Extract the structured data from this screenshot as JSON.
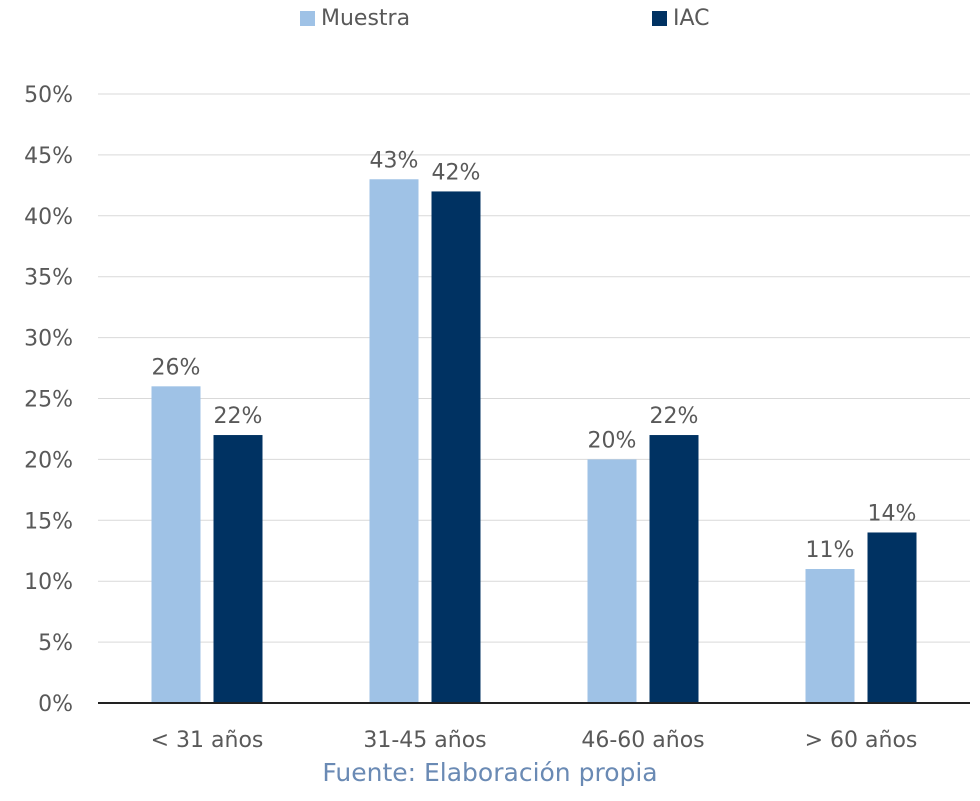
{
  "colors": {
    "muestra": "#9fc2e6",
    "iac": "#003262",
    "grid": "#d9d9d9",
    "axis": "#222222",
    "text": "#595959",
    "caption": "#6a8ab4"
  },
  "legend": {
    "muestra_label": "Muestra",
    "iac_label": "IAC"
  },
  "caption": "Fuente: Elaboración propia",
  "chart_data": {
    "type": "bar",
    "categories": [
      "< 31 años",
      "31-45 años",
      "46-60 años",
      "> 60 años"
    ],
    "series": [
      {
        "name": "Muestra",
        "values": [
          26,
          43,
          20,
          11
        ],
        "labels": [
          "26%",
          "43%",
          "20%",
          "11%"
        ]
      },
      {
        "name": "IAC",
        "values": [
          22,
          42,
          22,
          14
        ],
        "labels": [
          "22%",
          "42%",
          "22%",
          "14%"
        ]
      }
    ],
    "yticks": [
      "0%",
      "5%",
      "10%",
      "15%",
      "20%",
      "25%",
      "30%",
      "35%",
      "40%",
      "45%",
      "50%"
    ],
    "ylim": [
      0,
      50
    ],
    "grid": true,
    "legend_position": "top-center"
  }
}
